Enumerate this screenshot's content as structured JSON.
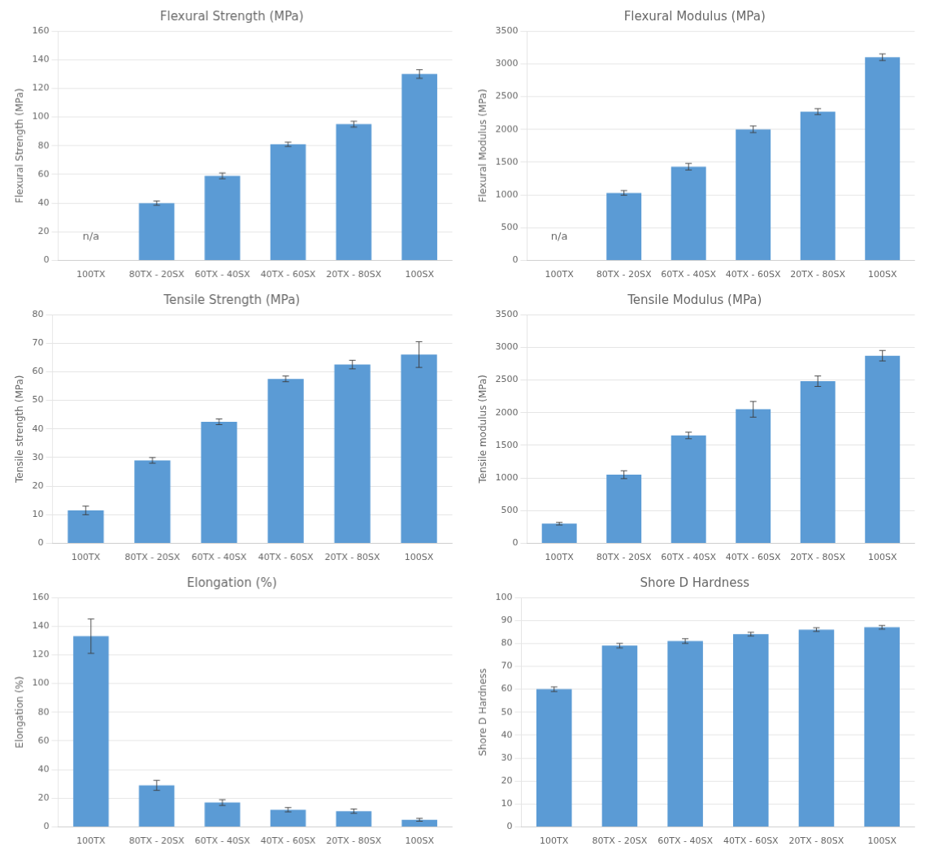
{
  "chart_data": [
    {
      "type": "bar",
      "title": "Flexural Strength (MPa)",
      "y_label": "Flexural Strength (MPa)",
      "categories": [
        "100TX",
        "80TX - 20SX",
        "60TX - 40SX",
        "40TX - 60SX",
        "20TX - 80SX",
        "100SX"
      ],
      "values": [
        null,
        40,
        59,
        81,
        95,
        130
      ],
      "errors": [
        null,
        1.5,
        2.0,
        1.5,
        2.0,
        3.0
      ],
      "color": "#5B9BD5",
      "ylim": [
        0,
        160
      ],
      "yticks": [
        0,
        20,
        40,
        60,
        80,
        100,
        120,
        140,
        160
      ],
      "grid": true,
      "annotations": [
        {
          "text": "n/a",
          "x": "100TX"
        }
      ]
    },
    {
      "type": "bar",
      "title": "Flexural Modulus (MPa)",
      "y_label": "Flexural Modulus (MPa)",
      "categories": [
        "100TX",
        "80TX - 20SX",
        "60TX - 40SX",
        "40TX - 60SX",
        "20TX - 80SX",
        "100SX"
      ],
      "values": [
        null,
        1030,
        1430,
        2000,
        2270,
        3100
      ],
      "errors": [
        null,
        35,
        50,
        50,
        45,
        50
      ],
      "color": "#5B9BD5",
      "ylim": [
        0,
        3500
      ],
      "yticks": [
        0,
        500,
        1000,
        1500,
        2000,
        2500,
        3000,
        3500
      ],
      "grid": true,
      "annotations": [
        {
          "text": "n/a",
          "x": "100TX"
        }
      ]
    },
    {
      "type": "bar",
      "title": "Tensile Strength (MPa)",
      "y_label": "Tensile strength (MPa)",
      "categories": [
        "100TX",
        "80TX - 20SX",
        "60TX - 40SX",
        "40TX - 60SX",
        "20TX - 80SX",
        "100SX"
      ],
      "values": [
        11.5,
        29,
        42.5,
        57.5,
        62.5,
        66
      ],
      "errors": [
        1.5,
        1.0,
        1.0,
        1.0,
        1.5,
        4.5
      ],
      "color": "#5B9BD5",
      "ylim": [
        0,
        80
      ],
      "yticks": [
        0,
        10,
        20,
        30,
        40,
        50,
        60,
        70,
        80
      ],
      "grid": true
    },
    {
      "type": "bar",
      "title": "Tensile Modulus (MPa)",
      "y_label": "Tensile modulus (MPa)",
      "categories": [
        "100TX",
        "80TX - 20SX",
        "60TX - 40SX",
        "40TX - 60SX",
        "20TX - 80SX",
        "100SX"
      ],
      "values": [
        300,
        1050,
        1650,
        2050,
        2480,
        2870
      ],
      "errors": [
        20,
        60,
        50,
        120,
        80,
        80
      ],
      "color": "#5B9BD5",
      "ylim": [
        0,
        3500
      ],
      "yticks": [
        0,
        500,
        1000,
        1500,
        2000,
        2500,
        3000,
        3500
      ],
      "grid": true
    },
    {
      "type": "bar",
      "title": "Elongation (%)",
      "y_label": "Elongation (%)",
      "categories": [
        "100TX",
        "80TX - 20SX",
        "60TX - 40SX",
        "40TX - 60SX",
        "20TX - 80SX",
        "100SX"
      ],
      "values": [
        133,
        29,
        17,
        12,
        11,
        5
      ],
      "errors": [
        12,
        3.5,
        2.0,
        1.5,
        1.5,
        1.0
      ],
      "color": "#5B9BD5",
      "ylim": [
        0,
        160
      ],
      "yticks": [
        0,
        20,
        40,
        60,
        80,
        100,
        120,
        140,
        160
      ],
      "grid": true
    },
    {
      "type": "bar",
      "title": "Shore D Hardness",
      "y_label": "Shore D Hardness",
      "categories": [
        "100TX",
        "80TX - 20SX",
        "60TX - 40SX",
        "40TX - 60SX",
        "20TX - 80SX",
        "100SX"
      ],
      "values": [
        60,
        79,
        81,
        84,
        86,
        87
      ],
      "errors": [
        1.0,
        1.0,
        1.0,
        0.8,
        0.8,
        0.8
      ],
      "color": "#5B9BD5",
      "ylim": [
        0,
        100
      ],
      "yticks": [
        0,
        10,
        20,
        30,
        40,
        50,
        60,
        70,
        80,
        90,
        100
      ],
      "grid": true
    }
  ]
}
